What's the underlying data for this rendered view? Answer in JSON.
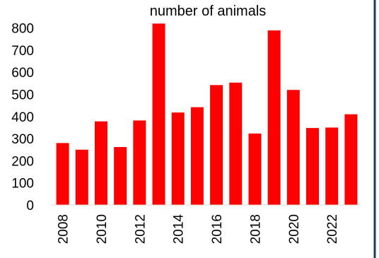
{
  "chart_data": {
    "type": "bar",
    "title": "number of animals",
    "xlabel": "",
    "ylabel": "",
    "categories": [
      "2008",
      "2009",
      "2010",
      "2011",
      "2012",
      "2013",
      "2014",
      "2015",
      "2016",
      "2017",
      "2018",
      "2019",
      "2020",
      "2021",
      "2022",
      "2023"
    ],
    "values": [
      280,
      250,
      378,
      262,
      382,
      820,
      418,
      442,
      542,
      553,
      323,
      789,
      520,
      348,
      350,
      410
    ],
    "x_tick_labels": [
      "2008",
      "2010",
      "2012",
      "2014",
      "2016",
      "2018",
      "2020",
      "2022"
    ],
    "y_ticks": [
      0,
      100,
      200,
      300,
      400,
      500,
      600,
      700,
      800
    ],
    "ylim": [
      0,
      850
    ],
    "grid": false,
    "legend": "none",
    "bar_color": "#ff0000",
    "axis_color": "#d9d9d9",
    "border_color": "#1f3864"
  }
}
